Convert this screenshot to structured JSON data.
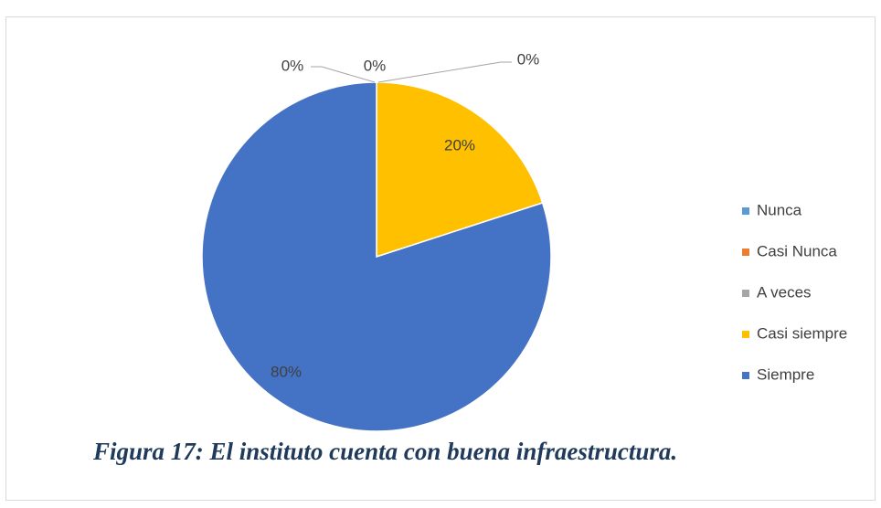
{
  "chart_data": {
    "type": "pie",
    "categories": [
      "Nunca",
      "Casi Nunca",
      "A veces",
      "Casi siempre",
      "Siempre"
    ],
    "values": [
      0,
      0,
      0,
      20,
      80
    ],
    "value_labels": [
      "0%",
      "0%",
      "0%",
      "20%",
      "80%"
    ],
    "colors": [
      "#5b9bd5",
      "#ed7d31",
      "#a5a5a5",
      "#ffc000",
      "#4472c4"
    ],
    "legend": "right",
    "caption": "Figura 17: El instituto cuenta con buena infraestructura."
  }
}
